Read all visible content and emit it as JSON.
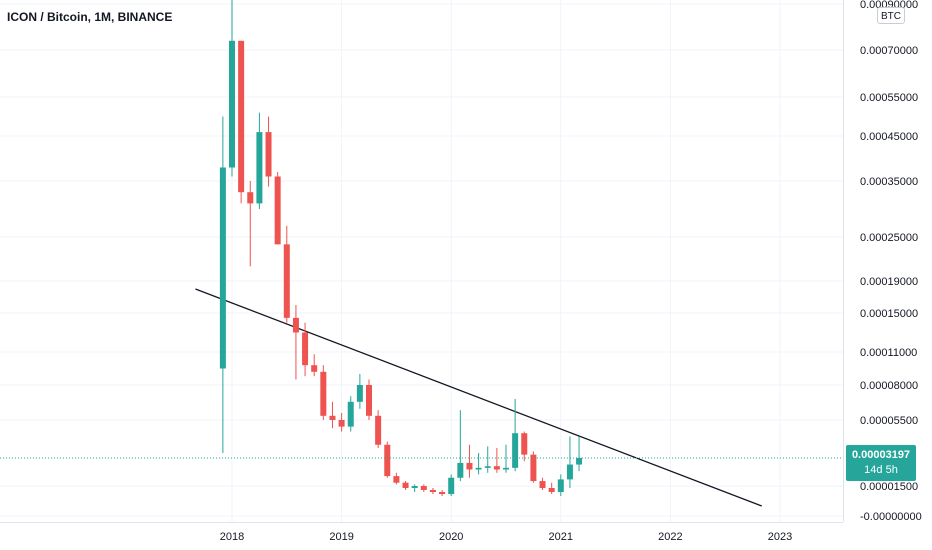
{
  "title": "ICON / Bitcoin, 1M, BINANCE",
  "currency_badge": "BTC",
  "current_price": {
    "price": "0.00003197",
    "countdown": "14d 5h"
  },
  "colors": {
    "up": "#26a69a",
    "down": "#ef5350",
    "trendline": "#131722",
    "price_line": "#26a69a",
    "grid": "#f0f3fa"
  },
  "chart_data": {
    "type": "candlestick",
    "title": "ICON / Bitcoin, 1M, BINANCE",
    "x_ticks": [
      "2018",
      "2019",
      "2020",
      "2021",
      "2022",
      "2023"
    ],
    "y_ticks": [
      "0.00090000",
      "0.00070000",
      "0.00055000",
      "0.00045000",
      "0.00035000",
      "0.00025000",
      "0.00019000",
      "0.00015000",
      "0.00011000",
      "0.00008000",
      "0.00005500",
      "0.00001500",
      "-0.00000000"
    ],
    "y_scale": "log",
    "grid": true,
    "candles": [
      {
        "t": "2017-12",
        "o": 9.5e-05,
        "h": 0.0005,
        "l": 3.5e-05,
        "c": 0.00038
      },
      {
        "t": "2018-01",
        "o": 0.00038,
        "h": 0.001,
        "l": 0.00036,
        "c": 0.00074
      },
      {
        "t": "2018-02",
        "o": 0.00074,
        "h": 0.00074,
        "l": 0.00031,
        "c": 0.00033
      },
      {
        "t": "2018-03",
        "o": 0.00033,
        "h": 0.00035,
        "l": 0.00021,
        "c": 0.00031
      },
      {
        "t": "2018-04",
        "o": 0.00031,
        "h": 0.00051,
        "l": 0.0003,
        "c": 0.00046
      },
      {
        "t": "2018-05",
        "o": 0.00046,
        "h": 0.0005,
        "l": 0.00034,
        "c": 0.00036
      },
      {
        "t": "2018-06",
        "o": 0.00036,
        "h": 0.00037,
        "l": 0.00024,
        "c": 0.00024
      },
      {
        "t": "2018-07",
        "o": 0.00024,
        "h": 0.00027,
        "l": 0.00014,
        "c": 0.000145
      },
      {
        "t": "2018-08",
        "o": 0.000145,
        "h": 0.00016,
        "l": 8.5e-05,
        "c": 0.00013
      },
      {
        "t": "2018-09",
        "o": 0.00013,
        "h": 0.00014,
        "l": 8.8e-05,
        "c": 9.8e-05
      },
      {
        "t": "2018-10",
        "o": 9.8e-05,
        "h": 0.000108,
        "l": 8.8e-05,
        "c": 9.2e-05
      },
      {
        "t": "2018-11",
        "o": 9.2e-05,
        "h": 9.8e-05,
        "l": 5.5e-05,
        "c": 5.8e-05
      },
      {
        "t": "2018-12",
        "o": 5.8e-05,
        "h": 6.8e-05,
        "l": 5e-05,
        "c": 5.5e-05
      },
      {
        "t": "2019-01",
        "o": 5.5e-05,
        "h": 6e-05,
        "l": 4.8e-05,
        "c": 5.1e-05
      },
      {
        "t": "2019-02",
        "o": 5.1e-05,
        "h": 7.2e-05,
        "l": 4.8e-05,
        "c": 6.8e-05
      },
      {
        "t": "2019-03",
        "o": 6.8e-05,
        "h": 9e-05,
        "l": 6.3e-05,
        "c": 8e-05
      },
      {
        "t": "2019-04",
        "o": 8e-05,
        "h": 8.5e-05,
        "l": 5.5e-05,
        "c": 5.8e-05
      },
      {
        "t": "2019-05",
        "o": 5.8e-05,
        "h": 6.2e-05,
        "l": 3.8e-05,
        "c": 4e-05
      },
      {
        "t": "2019-06",
        "o": 4e-05,
        "h": 4.2e-05,
        "l": 2e-05,
        "c": 2.1e-05
      },
      {
        "t": "2019-07",
        "o": 2.1e-05,
        "h": 2.3e-05,
        "l": 1.6e-05,
        "c": 1.7e-05
      },
      {
        "t": "2019-08",
        "o": 1.7e-05,
        "h": 1.8e-05,
        "l": 1.3e-05,
        "c": 1.4e-05
      },
      {
        "t": "2019-09",
        "o": 1.4e-05,
        "h": 1.6e-05,
        "l": 1.2e-05,
        "c": 1.5e-05
      },
      {
        "t": "2019-10",
        "o": 1.5e-05,
        "h": 1.6e-05,
        "l": 1.2e-05,
        "c": 1.3e-05
      },
      {
        "t": "2019-11",
        "o": 1.3e-05,
        "h": 1.4e-05,
        "l": 1.1e-05,
        "c": 1.2e-05
      },
      {
        "t": "2019-12",
        "o": 1.2e-05,
        "h": 1.3e-05,
        "l": 1e-05,
        "c": 1.1e-05
      },
      {
        "t": "2020-01",
        "o": 1.1e-05,
        "h": 2.2e-05,
        "l": 1e-05,
        "c": 2e-05
      },
      {
        "t": "2020-02",
        "o": 2e-05,
        "h": 6.2e-05,
        "l": 1.8e-05,
        "c": 2.9e-05
      },
      {
        "t": "2020-03",
        "o": 2.9e-05,
        "h": 4e-05,
        "l": 2e-05,
        "c": 2.5e-05
      },
      {
        "t": "2020-04",
        "o": 2.5e-05,
        "h": 3.5e-05,
        "l": 2.2e-05,
        "c": 2.6e-05
      },
      {
        "t": "2020-05",
        "o": 2.6e-05,
        "h": 3.9e-05,
        "l": 2.3e-05,
        "c": 2.7e-05
      },
      {
        "t": "2020-06",
        "o": 2.7e-05,
        "h": 3.8e-05,
        "l": 2.3e-05,
        "c": 2.5e-05
      },
      {
        "t": "2020-07",
        "o": 2.5e-05,
        "h": 4e-05,
        "l": 2.3e-05,
        "c": 2.6e-05
      },
      {
        "t": "2020-08",
        "o": 2.6e-05,
        "h": 7e-05,
        "l": 2.4e-05,
        "c": 4.7e-05
      },
      {
        "t": "2020-09",
        "o": 4.7e-05,
        "h": 4.8e-05,
        "l": 3e-05,
        "c": 3.4e-05
      },
      {
        "t": "2020-10",
        "o": 3.4e-05,
        "h": 3.6e-05,
        "l": 1.7e-05,
        "c": 1.8e-05
      },
      {
        "t": "2020-11",
        "o": 1.8e-05,
        "h": 2e-05,
        "l": 1.3e-05,
        "c": 1.4e-05
      },
      {
        "t": "2020-12",
        "o": 1.4e-05,
        "h": 1.7e-05,
        "l": 1.1e-05,
        "c": 1.2e-05
      },
      {
        "t": "2021-01",
        "o": 1.2e-05,
        "h": 2.2e-05,
        "l": 1e-05,
        "c": 1.9e-05
      },
      {
        "t": "2021-02",
        "o": 1.9e-05,
        "h": 4.5e-05,
        "l": 1.4e-05,
        "c": 2.8e-05
      },
      {
        "t": "2021-03",
        "o": 2.8e-05,
        "h": 4.5e-05,
        "l": 2.4e-05,
        "c": 3.197e-05
      }
    ],
    "trendline": {
      "from": {
        "t": "2017-09",
        "price": 0.00018
      },
      "to": {
        "t": "2022-11",
        "price": 5e-06
      }
    },
    "last_price": 3.197e-05
  }
}
